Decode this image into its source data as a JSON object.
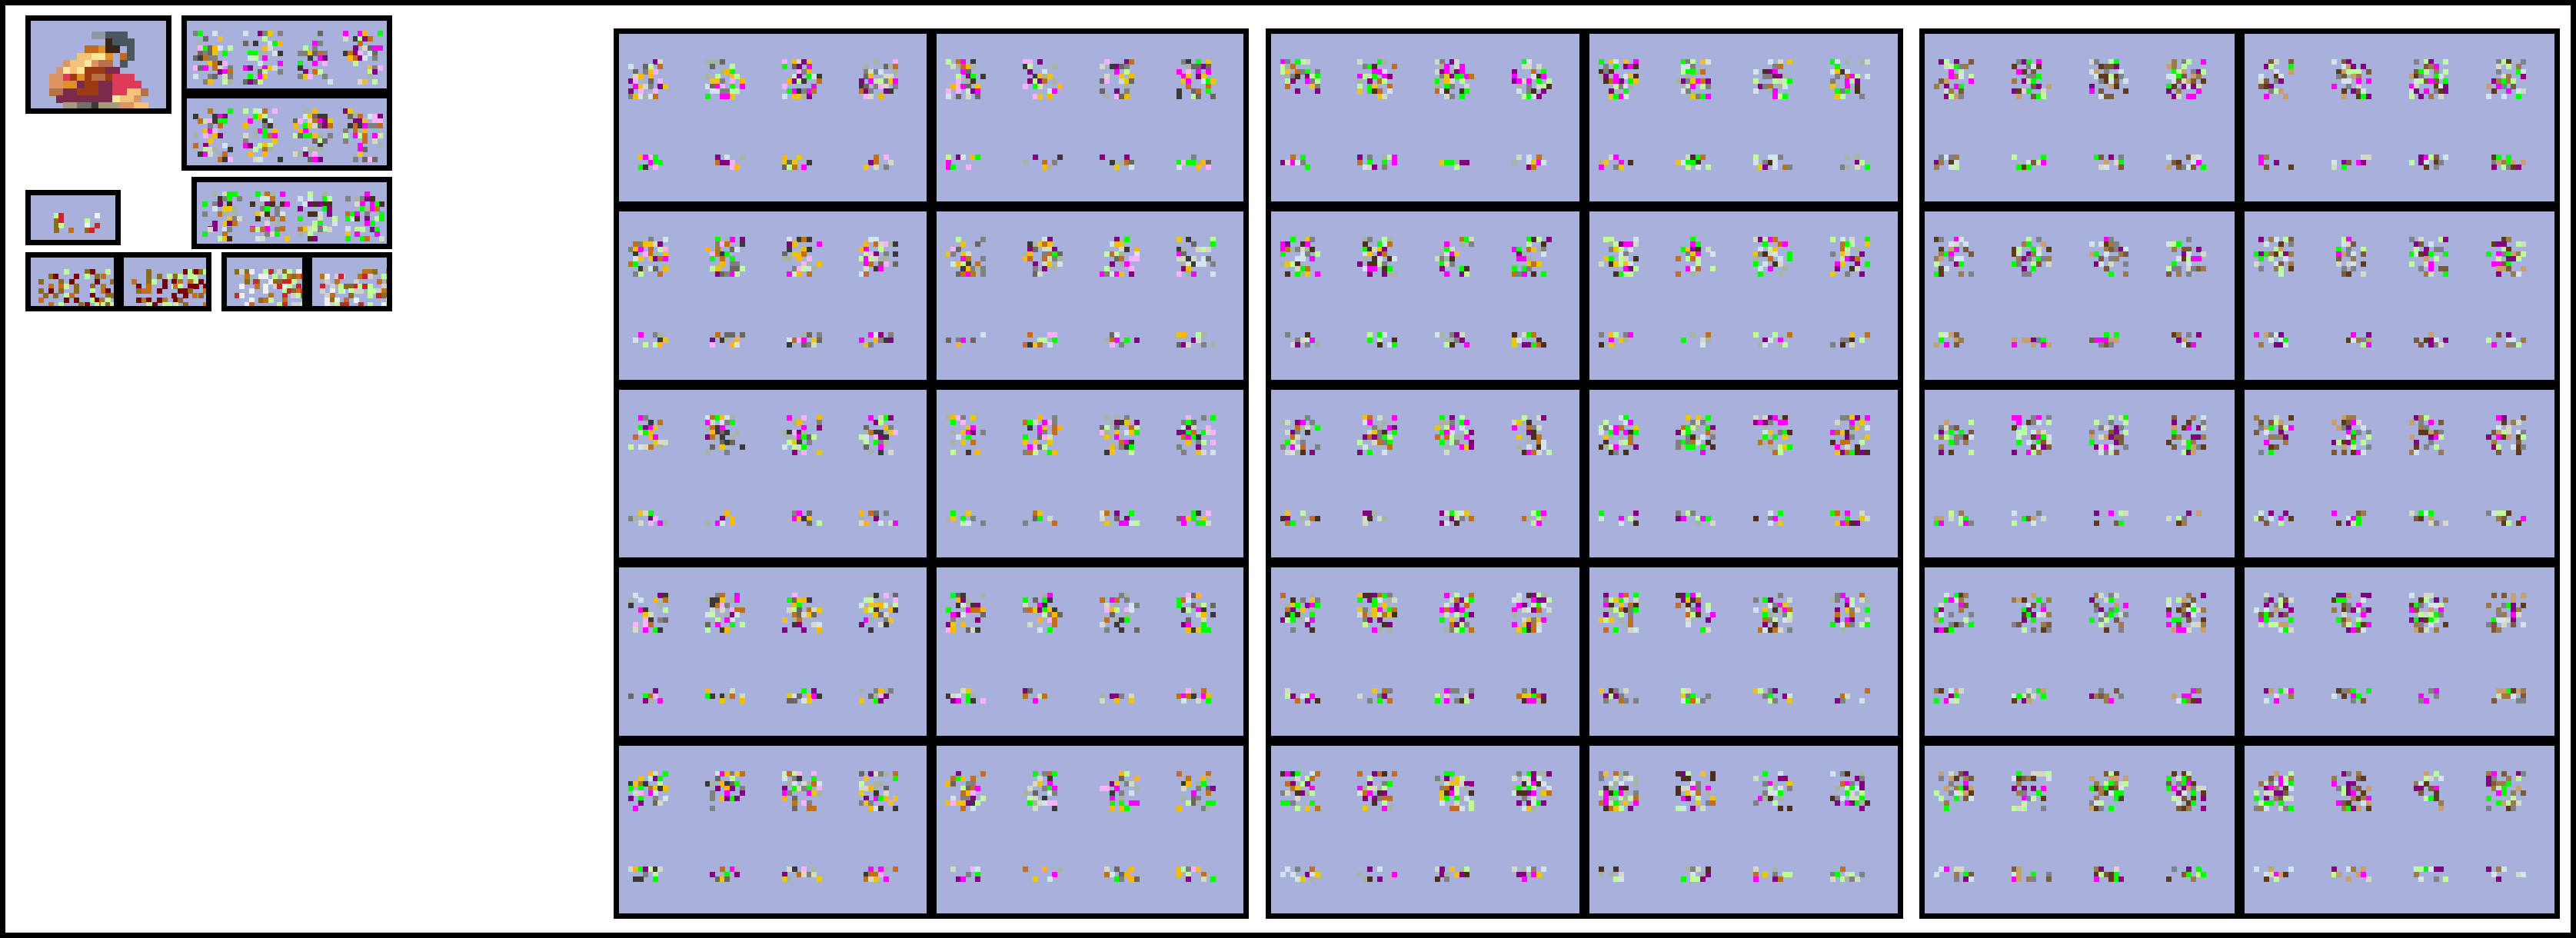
{
  "sheet": {
    "background": "#ffffff",
    "frame_color": "#000000",
    "cell_background": "#a8b0dc"
  },
  "palettes": {
    "hero": [
      "#8a9aa0",
      "#4a5660",
      "#3a2418",
      "#c8661c",
      "#e0902a",
      "#f6c27a",
      "#fde79a",
      "#dc9464",
      "#b8704a",
      "#9c3a14",
      "#7a2a4a",
      "#de3a5a",
      "#a6335a",
      "#a69a7a",
      "#76706a",
      "#3a3a3a",
      "#6a3e24"
    ],
    "group_a": [
      "#800080",
      "#ff00ff",
      "#00ff00",
      "#bfff99",
      "#3c3838",
      "#6c6660",
      "#d5dac5",
      "#a8b4a8",
      "#c0701c",
      "#ecc418",
      "#d4e4ec",
      "#ffb0ff",
      "#808080",
      "#ffb800"
    ],
    "group_b": [
      "#800080",
      "#ff00ff",
      "#00ff00",
      "#bfff99",
      "#4a2e1e",
      "#ecc418",
      "#c0701c",
      "#a8b4a8",
      "#d5dac5",
      "#d4e4ec",
      "#808080"
    ],
    "group_c": [
      "#800080",
      "#ff00ff",
      "#00ff00",
      "#bfff99",
      "#5c3a1a",
      "#7a5a3a",
      "#808088",
      "#c8a070",
      "#d5dac5",
      "#d4e4ec",
      "#9c7a4a"
    ],
    "items_red": [
      "#7a0000",
      "#c0701c",
      "#8a6a1e",
      "#bfff99"
    ],
    "items_bone": [
      "#c8282a",
      "#f0f0f0",
      "#d0d0d0",
      "#bfff99",
      "#8a6a1e",
      "#c0701c"
    ]
  }
}
